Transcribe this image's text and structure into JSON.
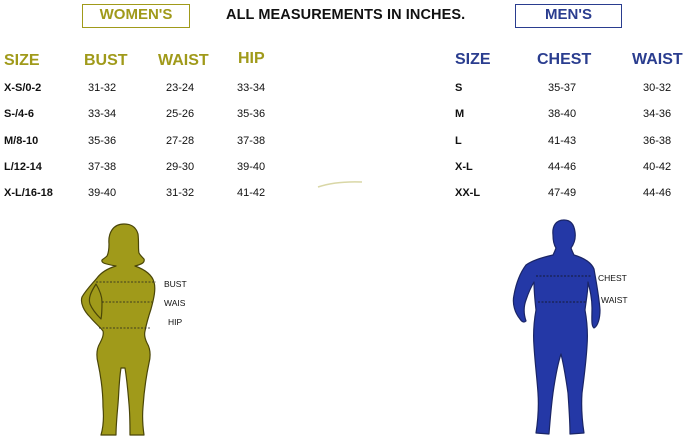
{
  "badges": {
    "women": "WOMEN'S",
    "men": "MEN'S"
  },
  "title": "ALL MEASUREMENTS IN INCHES.",
  "womens": {
    "headers": {
      "size": "SIZE",
      "bust": "BUST",
      "waist": "WAIST",
      "hip": "HIP"
    },
    "rows": [
      {
        "size": "X-S/0-2",
        "bust": "31-32",
        "waist": "23-24",
        "hip": "33-34"
      },
      {
        "size": "S-/4-6",
        "bust": "33-34",
        "waist": "25-26",
        "hip": "35-36"
      },
      {
        "size": "M/8-10",
        "bust": "35-36",
        "waist": "27-28",
        "hip": "37-38"
      },
      {
        "size": "L/12-14",
        "bust": "37-38",
        "waist": "29-30",
        "hip": "39-40"
      },
      {
        "size": "X-L/16-18",
        "bust": "39-40",
        "waist": "31-32",
        "hip": "41-42"
      }
    ],
    "figure_labels": {
      "bust": "BUST",
      "waist": "WAIS",
      "hip": "HIP"
    },
    "color": "#a09a1a"
  },
  "mens": {
    "headers": {
      "size": "SIZE",
      "chest": "CHEST",
      "waist": "WAIST"
    },
    "rows": [
      {
        "size": "S",
        "chest": "35-37",
        "waist": "30-32"
      },
      {
        "size": "M",
        "chest": "38-40",
        "waist": "34-36"
      },
      {
        "size": "L",
        "chest": "41-43",
        "waist": "36-38"
      },
      {
        "size": "X-L",
        "chest": "44-46",
        "waist": "40-42"
      },
      {
        "size": "XX-L",
        "chest": "47-49",
        "waist": "44-46"
      }
    ],
    "figure_labels": {
      "chest": "CHEST",
      "waist": "WAIST"
    },
    "color": "#2a3d8f"
  }
}
